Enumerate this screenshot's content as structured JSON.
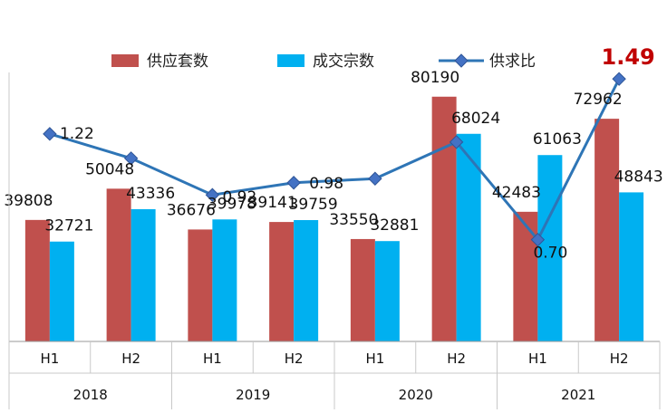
{
  "chart_data": {
    "type": "bar",
    "title": "",
    "categories": [
      "H1",
      "H2",
      "H1",
      "H2",
      "H1",
      "H2",
      "H1",
      "H2"
    ],
    "groups": [
      {
        "label": "2018",
        "span": 2
      },
      {
        "label": "2019",
        "span": 2
      },
      {
        "label": "2020",
        "span": 2
      },
      {
        "label": "2021",
        "span": 2
      }
    ],
    "series": [
      {
        "name": "供应套数",
        "type": "bar",
        "color": "#C0504D",
        "values": [
          39808,
          50048,
          36676,
          39141,
          33550,
          80190,
          42483,
          72962
        ],
        "labels": [
          "39808",
          "50048",
          "36676",
          "39141",
          "33550",
          "80190",
          "42483",
          "72962"
        ]
      },
      {
        "name": "成交宗数",
        "type": "bar",
        "color": "#00B0F0",
        "values": [
          32721,
          43336,
          39978,
          39759,
          32881,
          68024,
          61063,
          48843
        ],
        "labels": [
          "32721",
          "43336",
          "39978",
          "39759",
          "32881",
          "68024",
          "61063",
          "48843"
        ]
      },
      {
        "name": "供求比",
        "type": "line",
        "color": "#2E75B6",
        "marker_color": "#4472C4",
        "values": [
          1.22,
          1.1,
          0.92,
          0.98,
          1.0,
          1.18,
          0.7,
          1.49
        ],
        "labels": [
          "1.22",
          "",
          "0.92",
          "0.98",
          "",
          "",
          "0.70",
          "1.49"
        ],
        "highlight_color": "#C00000"
      }
    ],
    "ylim_bars": [
      0,
      100000
    ],
    "ylim_line": [
      0.2,
      1.7
    ],
    "legend_position": "top",
    "grid": false
  }
}
